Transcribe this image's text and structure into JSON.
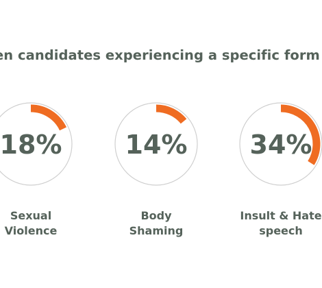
{
  "colors": {
    "text": "#55625a",
    "ring": "#cfcfcf",
    "accent": "#ef6c22"
  },
  "chart_data": {
    "type": "gauge",
    "title": "en candidates experiencing a specific form of",
    "items": [
      {
        "value": 18,
        "display": "18%",
        "label_lines": [
          "Sexual",
          "Violence"
        ]
      },
      {
        "value": 14,
        "display": "14%",
        "label_lines": [
          "Body",
          "Shaming"
        ]
      },
      {
        "value": 34,
        "display": "34%",
        "label_lines": [
          "Insult & Hate",
          "speech"
        ]
      }
    ]
  }
}
